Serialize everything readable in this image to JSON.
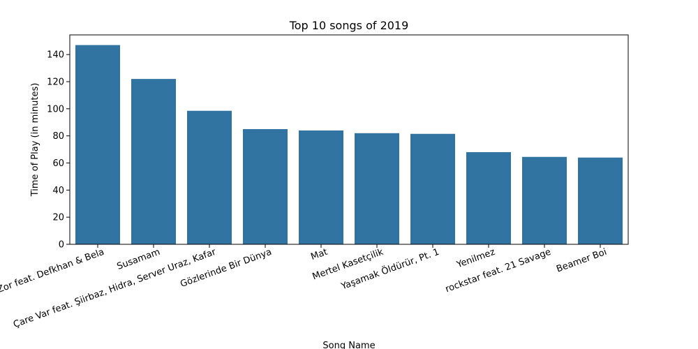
{
  "chart_data": {
    "type": "bar",
    "title": "Top 10 songs of 2019",
    "xlabel": "Song Name",
    "ylabel": "Time of Play (in minutes)",
    "categories": [
      "Zor feat. Defkhan & Bela",
      "Susamam",
      "Çare Var feat. Şiirbaz, Hidra, Server Uraz, Kafar",
      "Gözlerinde Bir Dünya",
      "Mat",
      "Mertel Kasetçilik",
      "Yaşamak Öldürür, Pt. 1",
      "Yenilmez",
      "rockstar feat. 21 Savage",
      "Beamer Boi"
    ],
    "values": [
      147,
      122,
      98.5,
      85,
      84,
      82,
      81.5,
      68,
      64.5,
      64
    ],
    "ylim": [
      0,
      154.5
    ],
    "yticks": [
      0,
      20,
      40,
      60,
      80,
      100,
      120,
      140
    ],
    "bar_color": "#3274a1",
    "grid": false,
    "legend": "none"
  }
}
